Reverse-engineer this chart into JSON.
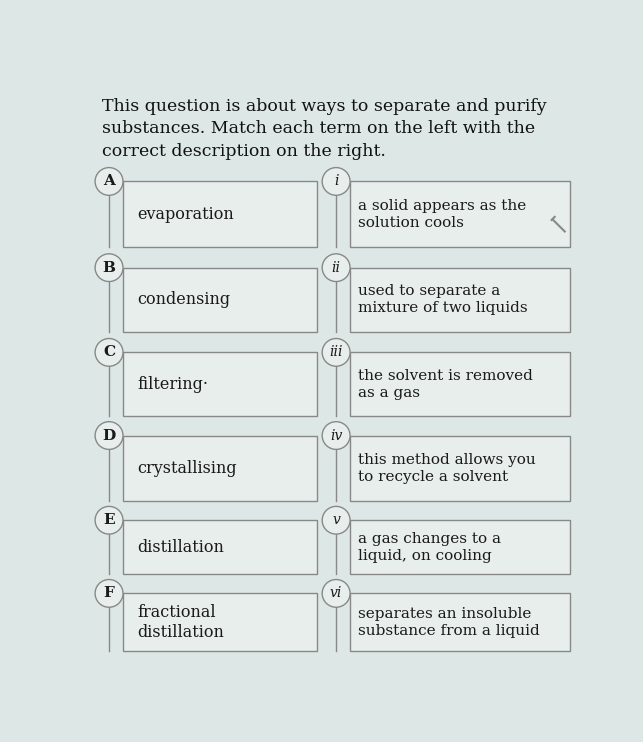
{
  "title_lines": [
    "This question is about ways to separate and purify",
    "substances. Match each term on the left with the",
    "correct description on the right."
  ],
  "left_labels": [
    "A",
    "B",
    "C",
    "D",
    "E",
    "F"
  ],
  "left_terms": [
    "evaporation",
    "condensing",
    "filtering·",
    "crystallising",
    "distillation",
    "fractional\ndistillation"
  ],
  "right_labels": [
    "i",
    "ii",
    "iii",
    "iv",
    "v",
    "vi"
  ],
  "right_descriptions": [
    "a solid appears as the\nsolution cools",
    "used to separate a\nmixture of two liquids",
    "the solvent is removed\nas a gas",
    "this method allows you\nto recycle a solvent",
    "a gas changes to a\nliquid, on cooling",
    "separates an insoluble\nsubstance from a liquid"
  ],
  "bg_color": "#dde8e6",
  "box_facecolor": "#e8eeec",
  "box_edge_color": "#888888",
  "circle_facecolor": "#e8eeec",
  "circle_edge_color": "#888888",
  "text_color": "#1a1a1a",
  "title_color": "#111111",
  "font_size_title": 12.5,
  "font_size_label": 11,
  "font_size_term": 11.5,
  "font_size_desc": 11
}
